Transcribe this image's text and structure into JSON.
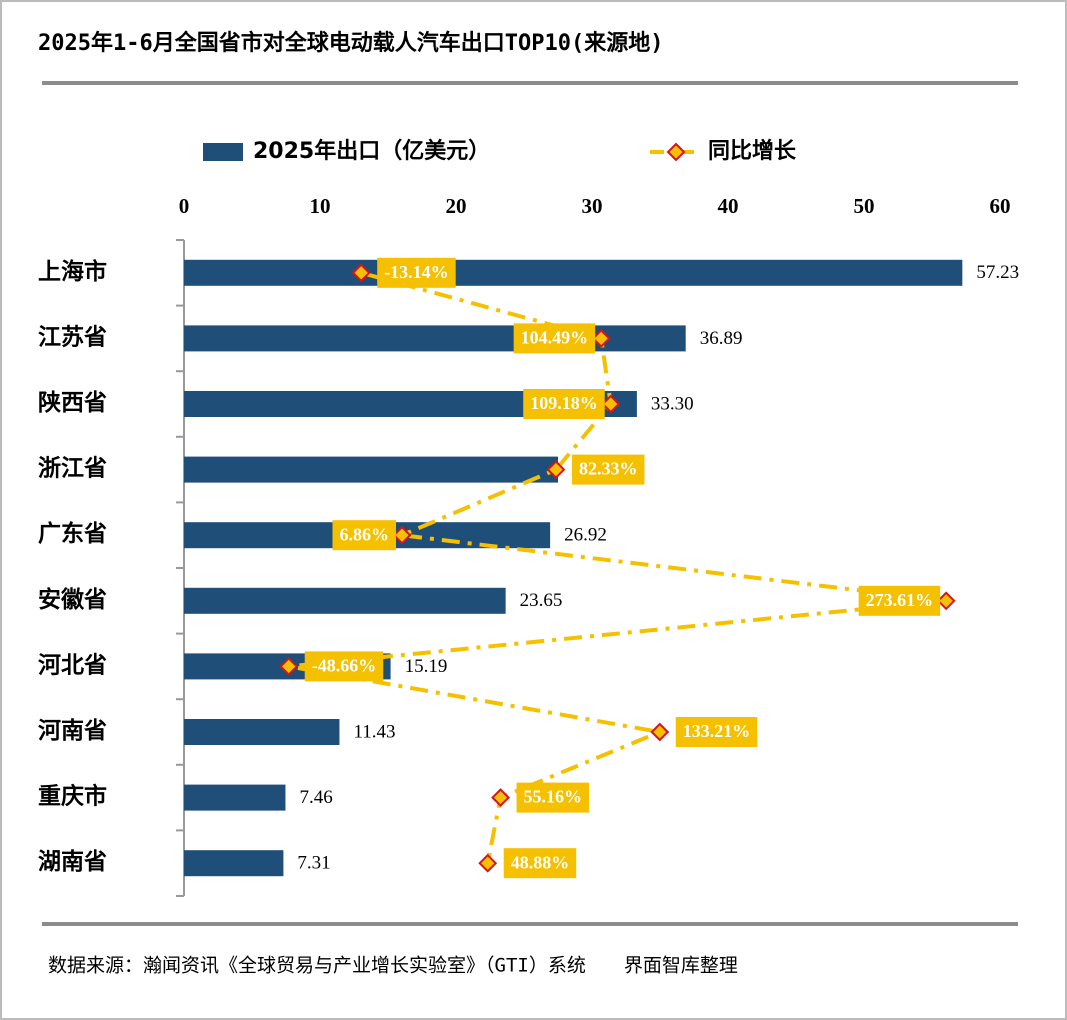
{
  "chart_data": {
    "type": "bar",
    "orientation": "horizontal",
    "title": "2025年1-6月全国省市对全球电动载人汽车出口TOP10(来源地)",
    "categories": [
      "上海市",
      "江苏省",
      "陕西省",
      "浙江省",
      "广东省",
      "安徽省",
      "河北省",
      "河南省",
      "重庆市",
      "湖南省"
    ],
    "xlim": [
      0,
      60
    ],
    "xticks": [
      0,
      10,
      20,
      30,
      40,
      50,
      60
    ],
    "x2lim": [
      -100,
      300
    ],
    "series": [
      {
        "name": "2025年出口（亿美元）",
        "color": "#1f4e79",
        "values": [
          57.23,
          36.89,
          33.3,
          27.5,
          26.92,
          23.65,
          15.19,
          11.43,
          7.46,
          7.31
        ],
        "value_labels": [
          "57.23",
          "36.89",
          "33.30",
          null,
          "26.92",
          "23.65",
          "15.19",
          "11.43",
          "7.46",
          "7.31"
        ]
      },
      {
        "name": "同比增长",
        "type": "line",
        "axis": "x2",
        "color": "#f5c000",
        "marker_color": "#d7141a",
        "values": [
          -13.14,
          104.49,
          109.18,
          82.33,
          6.86,
          273.61,
          -48.66,
          133.21,
          55.16,
          48.88
        ],
        "value_labels": [
          "-13.14%",
          "104.49%",
          "109.18%",
          "82.33%",
          "6.86%",
          "273.61%",
          "-48.66%",
          "133.21%",
          "55.16%",
          "48.88%"
        ]
      }
    ],
    "source": "数据来源：瀚闻资讯《全球贸易与产业增长实验室》（GTI）系统　　界面智库整理"
  }
}
